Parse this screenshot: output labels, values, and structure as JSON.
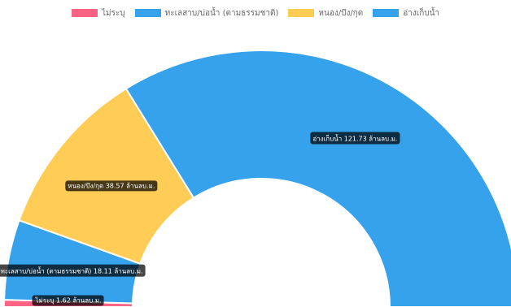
{
  "chart_data": {
    "type": "pie",
    "variant": "half-doughnut",
    "unit_suffix": "ล้านลบ.ม.",
    "legend_position": "top",
    "slices": [
      {
        "label": "ไม่ระบุ",
        "value": 1.62,
        "color": "#ff6384"
      },
      {
        "label": "ทะเลสาบ/บ่อน้ำ (ตามธรรมชาติ)",
        "value": 18.11,
        "color": "#36a2eb"
      },
      {
        "label": "หนอง/บึง/กุด",
        "value": 38.57,
        "color": "#ffcd56"
      },
      {
        "label": "อ่างเก็บน้ำ",
        "value": 121.73,
        "color": "#36a2eb"
      }
    ]
  }
}
